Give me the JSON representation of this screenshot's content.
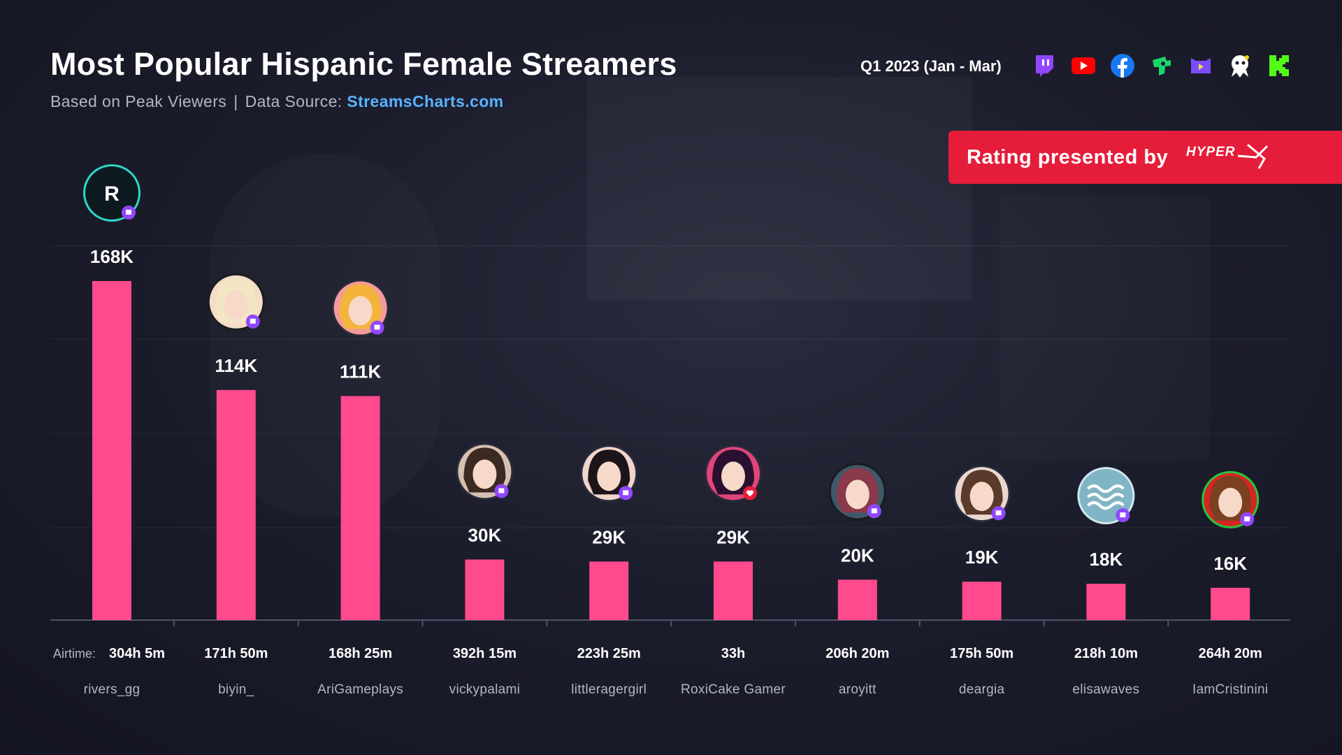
{
  "header": {
    "title": "Most Popular Hispanic Female Streamers",
    "subtitle_prefix": "Based on Peak Viewers",
    "subtitle_sep": "|",
    "source_label": "Data Source:",
    "source_link": "StreamsCharts.com",
    "period": "Q1 2023 (Jan - Mar)"
  },
  "platforms": [
    {
      "name": "twitch-icon",
      "color": "#9146ff"
    },
    {
      "name": "youtube-icon",
      "color": "#ff0000"
    },
    {
      "name": "facebook-icon",
      "color": "#1877f2"
    },
    {
      "name": "trovo-icon",
      "color": "#19d66b"
    },
    {
      "name": "nimo-icon",
      "color": "#7b4dff"
    },
    {
      "name": "dlive-icon",
      "color": "#ffd300"
    },
    {
      "name": "kick-icon",
      "color": "#53fc18"
    }
  ],
  "banner": {
    "text": "Rating presented by",
    "logo": "HYPERX"
  },
  "airtime_label": "Airtime:",
  "colors": {
    "bar": "#ff4a8d",
    "axis": "#50536a",
    "value_label": "#ffffff",
    "airtime": "#ffffff",
    "name": "#b3b6c6"
  },
  "chart_data": {
    "type": "bar",
    "categories": [
      "rivers_gg",
      "biyin_",
      "AriGameplays",
      "vickypalami",
      "littleragergirl",
      "RoxiCake Gamer",
      "aroyitt",
      "deargia",
      "elisawaves",
      "IamCristinini"
    ],
    "values": [
      168000,
      114000,
      111000,
      30000,
      29000,
      29000,
      20000,
      19000,
      18000,
      16000
    ],
    "value_labels": [
      "168K",
      "114K",
      "111K",
      "30K",
      "29K",
      "29K",
      "20K",
      "19K",
      "18K",
      "16K"
    ],
    "airtime": [
      "304h 5m",
      "171h 50m",
      "168h 25m",
      "392h 15m",
      "223h 25m",
      "33h",
      "206h 20m",
      "175h 50m",
      "218h 10m",
      "264h 20m"
    ],
    "platform": [
      "twitch",
      "twitch",
      "twitch",
      "twitch",
      "twitch",
      "kick",
      "twitch",
      "twitch",
      "twitch",
      "twitch"
    ],
    "ylim": [
      0,
      168000
    ],
    "grid": true
  }
}
